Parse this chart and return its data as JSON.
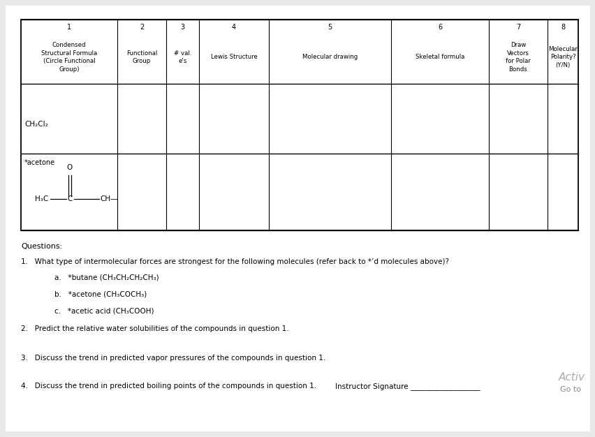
{
  "bg_color": "#e8e8e8",
  "page_bg": "#ffffff",
  "header_numbers": [
    "1",
    "2",
    "3",
    "4",
    "5",
    "6",
    "7",
    "8"
  ],
  "header_texts": [
    "Condensed\nStructural Formula\n(Circle Functional\nGroup)",
    "Functional\nGroup",
    "# val.\ne's",
    "Lewis Structure",
    "Molecular drawing",
    "Skeletal formula",
    "Draw\nVectors\nfor Polar\nBonds",
    "Molecular\nPolarity?\n(Y/N)"
  ],
  "row1_label": "CH₂Cl₂",
  "row2_label": "*acetone",
  "questions_title": "Questions:",
  "q1_text": "1.   What type of intermolecular forces are strongest for the following molecules (refer back to *’d molecules above)?",
  "q1a": "a.   *butane (CH₃CH₂CH₂CH₃)",
  "q1b": "b.   *acetone (CH₃COCH₃)",
  "q1c": "c.   *acetic acid (CH₃COOH)",
  "q2_text": "2.   Predict the relative water solubilities of the compounds in question 1.",
  "q3_text": "3.   Discuss the trend in predicted vapor pressures of the compounds in question 1.",
  "q4_text": "4.   Discuss the trend in predicted boiling points of the compounds in question 1.",
  "instructor_sig": "Instructor Signature ___________________",
  "activ_text": "Activ",
  "goto_text": "Go to"
}
